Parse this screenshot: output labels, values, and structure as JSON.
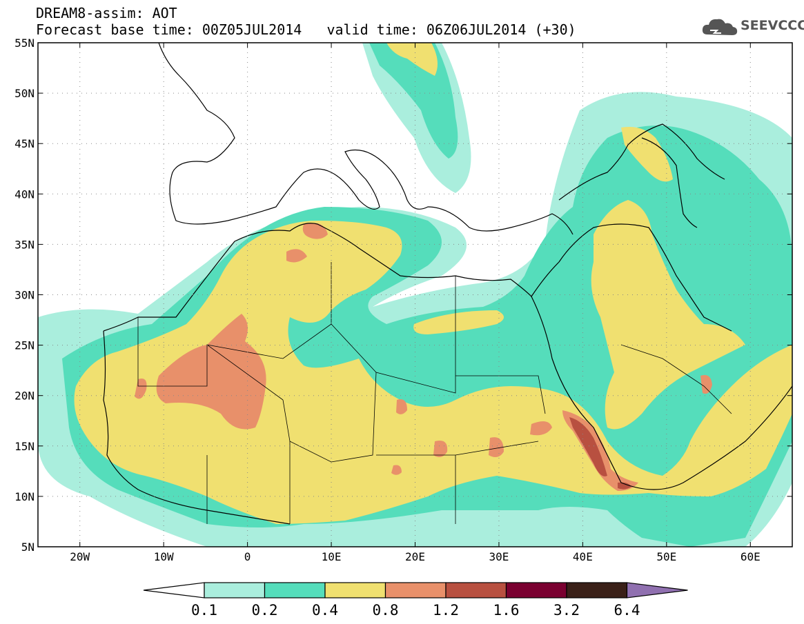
{
  "title": {
    "line1": "DREAM8-assim: AOT",
    "line2_base": "Forecast base time: 00Z05JUL2014",
    "line2_valid": "valid time: 06Z06JUL2014 (+30)"
  },
  "logo": {
    "text": "SEEVCCC",
    "icon": "cloud-icon"
  },
  "map_axes": {
    "lon_range": [
      -25,
      65
    ],
    "lat_range": [
      5,
      55
    ],
    "lat_ticks": [
      {
        "value": 55,
        "label": "55N"
      },
      {
        "value": 50,
        "label": "50N"
      },
      {
        "value": 45,
        "label": "45N"
      },
      {
        "value": 40,
        "label": "40N"
      },
      {
        "value": 35,
        "label": "35N"
      },
      {
        "value": 30,
        "label": "30N"
      },
      {
        "value": 25,
        "label": "25N"
      },
      {
        "value": 20,
        "label": "20N"
      },
      {
        "value": 15,
        "label": "15N"
      },
      {
        "value": 10,
        "label": "10N"
      },
      {
        "value": 5,
        "label": "5N"
      }
    ],
    "lon_ticks": [
      {
        "value": -20,
        "label": "20W"
      },
      {
        "value": -10,
        "label": "10W"
      },
      {
        "value": 0,
        "label": "0"
      },
      {
        "value": 10,
        "label": "10E"
      },
      {
        "value": 20,
        "label": "20E"
      },
      {
        "value": 30,
        "label": "30E"
      },
      {
        "value": 40,
        "label": "40E"
      },
      {
        "value": 50,
        "label": "50E"
      },
      {
        "value": 60,
        "label": "60E"
      }
    ]
  },
  "colorbar": {
    "levels": [
      "0.1",
      "0.2",
      "0.4",
      "0.8",
      "1.2",
      "1.6",
      "3.2",
      "6.4"
    ],
    "colors": [
      "#ffffff",
      "#aaeedd",
      "#55ddbb",
      "#f0e070",
      "#e8906a",
      "#b85040",
      "#7a0030",
      "#3a2018",
      "#9070b0"
    ]
  }
}
